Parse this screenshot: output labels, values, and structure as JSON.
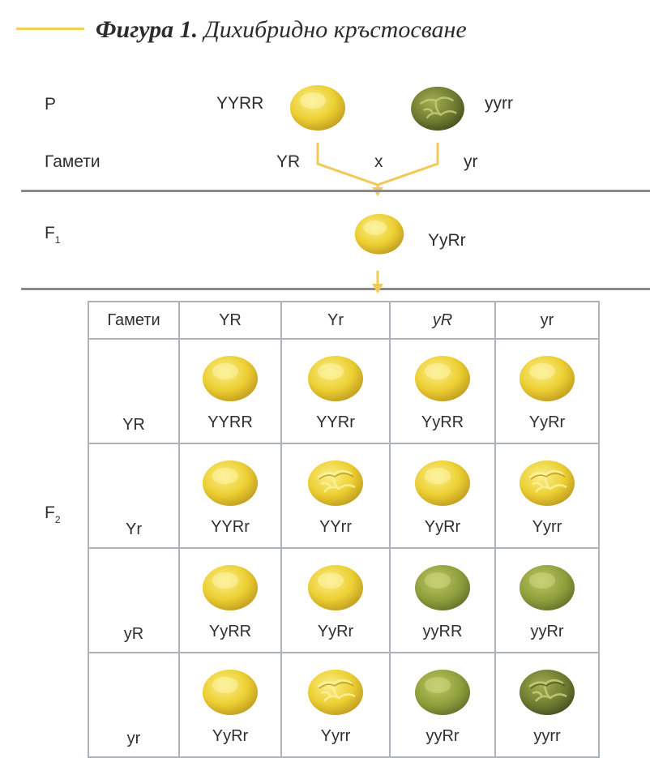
{
  "header": {
    "figure_label": "Фигура 1.",
    "title": "Дихибридно кръстосване"
  },
  "rows": {
    "parental": "P",
    "gametes": "Гамети",
    "f1": "F",
    "f1_sub": "1",
    "f2": "F",
    "f2_sub": "2"
  },
  "parents": {
    "left_genotype": "YYRR",
    "right_genotype": "yyrr",
    "left_gamete": "YR",
    "right_gamete": "yr",
    "cross_symbol": "x"
  },
  "f1_genotype": "YyRr",
  "punnett": {
    "corner": "Гамети",
    "columns": [
      "YR",
      "Yr",
      "yR",
      "yr"
    ],
    "rows": [
      {
        "gamete": "YR",
        "cells": [
          {
            "genotype": "YYRR",
            "color": "yellow",
            "shape": "round"
          },
          {
            "genotype": "YYRr",
            "color": "yellow",
            "shape": "round"
          },
          {
            "genotype": "YyRR",
            "color": "yellow",
            "shape": "round"
          },
          {
            "genotype": "YyRr",
            "color": "yellow",
            "shape": "round"
          }
        ]
      },
      {
        "gamete": "Yr",
        "cells": [
          {
            "genotype": "YYRr",
            "color": "yellow",
            "shape": "round"
          },
          {
            "genotype": "YYrr",
            "color": "yellow",
            "shape": "wrinkled"
          },
          {
            "genotype": "YyRr",
            "color": "yellow",
            "shape": "round"
          },
          {
            "genotype": "Yyrr",
            "color": "yellow",
            "shape": "wrinkled"
          }
        ]
      },
      {
        "gamete": "yR",
        "cells": [
          {
            "genotype": "YyRR",
            "color": "yellow",
            "shape": "round"
          },
          {
            "genotype": "YyRr",
            "color": "yellow",
            "shape": "round"
          },
          {
            "genotype": "yyRR",
            "color": "green",
            "shape": "round"
          },
          {
            "genotype": "yyRr",
            "color": "green",
            "shape": "round"
          }
        ]
      },
      {
        "gamete": "yr",
        "cells": [
          {
            "genotype": "YyRr",
            "color": "yellow",
            "shape": "round"
          },
          {
            "genotype": "Yyrr",
            "color": "yellow",
            "shape": "wrinkled"
          },
          {
            "genotype": "yyRr",
            "color": "green",
            "shape": "round"
          },
          {
            "genotype": "yyrr",
            "color": "green",
            "shape": "wrinkled"
          }
        ]
      }
    ]
  },
  "colors": {
    "yellow_light": "#f9ec7a",
    "yellow_mid": "#ecce2c",
    "yellow_dark": "#b8921c",
    "green_light": "#b7c25a",
    "green_mid": "#8a9b39",
    "green_dark": "#4e5a24",
    "connector": "#f1c95a",
    "divider": "#8a8a8a",
    "grid": "#aeb3ba",
    "title_rule": "#f0cf5a"
  }
}
